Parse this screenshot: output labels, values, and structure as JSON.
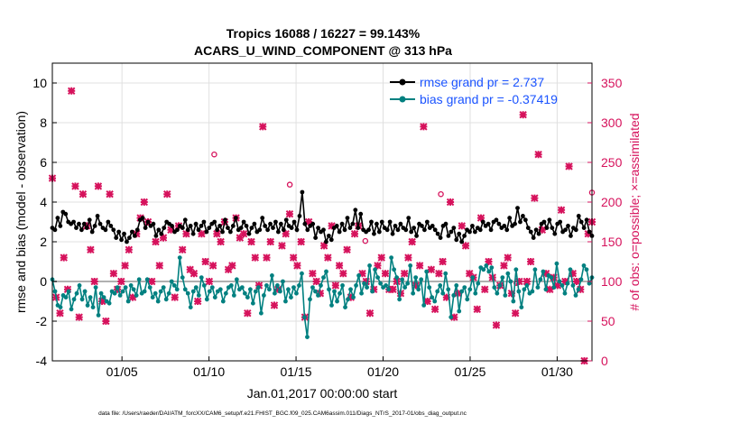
{
  "chart_data": {
    "type": "line",
    "title_line1": "Tropics 16088 / 16227 = 99.143%",
    "title_line2": "ACARS_U_WIND_COMPONENT @ 313 hPa",
    "xlabel": "Jan.01,2017 00:00:00 start",
    "ylabel_left": "rmse and bias (model - observation)",
    "ylabel_right": "# of obs: o=possible; ×=assimilated",
    "footer": "data file: /Users/raeder/DAI/ATM_forcXX/CAM6_setup/f.e21.FHIST_BGC.f09_025.CAM6assim.011/Diags_NTrS_2017-01/obs_diag_output.nc",
    "xlim": [
      1,
      32
    ],
    "ylim_left": [
      -4,
      11
    ],
    "ylim_right": [
      0,
      375
    ],
    "x_tick_values": [
      5,
      10,
      15,
      20,
      25,
      30
    ],
    "x_tick_labels": [
      "01/05",
      "01/10",
      "01/15",
      "01/20",
      "01/25",
      "01/30"
    ],
    "y_left_ticks": [
      -4,
      -2,
      0,
      2,
      4,
      6,
      8,
      10
    ],
    "y_right_ticks": [
      0,
      50,
      100,
      150,
      200,
      250,
      300,
      350
    ],
    "grid": true,
    "legend_position": "top-right",
    "series": [
      {
        "name": "rmse grand pr = 2.737",
        "color": "#000000",
        "values": [
          2.7,
          2.6,
          3.2,
          2.8,
          3.5,
          3.4,
          3.0,
          2.9,
          3.0,
          2.7,
          2.9,
          2.6,
          2.9,
          2.7,
          3.1,
          2.5,
          2.8,
          3.3,
          2.9,
          2.7,
          2.6,
          3.0,
          2.8,
          2.6,
          2.2,
          2.5,
          2.1,
          2.4,
          2.0,
          2.2,
          2.5,
          2.3,
          2.6,
          3.1,
          3.2,
          2.7,
          3.0,
          2.8,
          2.9,
          2.3,
          2.6,
          2.4,
          2.7,
          3.0,
          2.9,
          2.8,
          2.5,
          2.6,
          2.8,
          2.7,
          3.1,
          2.6,
          2.8,
          2.4,
          2.9,
          2.6,
          2.8,
          3.0,
          2.5,
          2.7,
          2.9,
          3.0,
          2.6,
          2.8,
          2.5,
          3.1,
          2.7,
          2.5,
          2.8,
          3.2,
          2.6,
          2.7,
          3.0,
          2.8,
          2.4,
          2.7,
          2.9,
          2.5,
          2.6,
          3.2,
          2.8,
          2.6,
          2.9,
          2.7,
          3.0,
          2.5,
          2.9,
          2.6,
          3.1,
          2.8,
          2.7,
          3.0,
          2.6,
          3.3,
          4.5,
          2.9,
          2.6,
          2.8,
          2.9,
          2.2,
          2.7,
          2.5,
          2.6,
          2.0,
          2.3,
          2.1,
          2.7,
          2.8,
          2.5,
          2.9,
          2.6,
          3.2,
          2.7,
          2.9,
          3.6,
          2.7,
          3.4,
          2.6,
          2.5,
          2.6,
          3.0,
          2.4,
          2.9,
          2.5,
          3.0,
          2.7,
          2.6,
          3.0,
          2.4,
          2.8,
          2.6,
          2.9,
          2.7,
          2.6,
          3.2,
          2.5,
          2.7,
          2.3,
          2.9,
          2.8,
          2.6,
          3.0,
          2.7,
          2.8,
          2.6,
          2.4,
          2.2,
          2.8,
          2.9,
          2.3,
          2.5,
          2.7,
          2.1,
          2.4,
          2.0,
          2.3,
          2.6,
          2.5,
          2.8,
          2.5,
          2.7,
          2.6,
          3.0,
          2.8,
          2.9,
          2.6,
          3.0,
          3.1,
          2.9,
          2.7,
          2.8,
          2.6,
          3.2,
          2.8,
          2.9,
          3.7,
          3.0,
          3.3,
          3.1,
          2.7,
          2.5,
          2.2,
          2.6,
          2.4,
          2.9,
          3.0,
          2.7,
          3.1,
          2.7,
          2.4,
          2.9,
          3.0,
          2.5,
          2.6,
          2.8,
          2.3,
          2.7,
          2.6,
          3.3,
          3.0,
          2.7,
          3.1,
          2.5,
          2.3
        ]
      },
      {
        "name": "bias grand pr = -0.37419",
        "color": "#008080",
        "values": [
          0.1,
          -0.5,
          -1.2,
          -1.3,
          -0.7,
          -0.8,
          -0.5,
          -1.4,
          -0.9,
          -0.6,
          -0.2,
          -0.9,
          -0.5,
          -1.2,
          -0.8,
          -1.3,
          -0.3,
          -1.7,
          -0.6,
          -0.8,
          -1.0,
          -1.1,
          -0.5,
          -0.6,
          -0.3,
          -0.7,
          -0.5,
          -0.3,
          -1.0,
          -0.2,
          -0.4,
          -0.7,
          0.1,
          -0.6,
          -0.5,
          0.1,
          -0.3,
          -0.8,
          -0.6,
          -1.0,
          -0.5,
          -0.3,
          -0.9,
          -0.6,
          0.0,
          -0.2,
          -0.4,
          1.2,
          0.2,
          -0.4,
          -0.6,
          -1.3,
          -0.5,
          -0.3,
          -0.7,
          0.2,
          -0.2,
          -0.9,
          -0.5,
          -0.3,
          -0.8,
          -0.5,
          -0.4,
          -1.0,
          -0.6,
          -0.3,
          -0.2,
          -0.7,
          0.1,
          -0.4,
          -0.3,
          -0.6,
          -0.8,
          -0.4,
          -1.1,
          -0.5,
          -0.3,
          -1.6,
          -0.7,
          -0.2,
          -0.4,
          0.3,
          -0.6,
          -0.2,
          -0.5,
          0.0,
          -1.0,
          -0.4,
          -0.8,
          -0.3,
          -0.6,
          -0.2,
          0.4,
          -1.8,
          -2.8,
          -0.9,
          -0.3,
          -0.5,
          -0.7,
          -0.2,
          0.2,
          0.5,
          -0.4,
          -1.2,
          -0.5,
          -1.0,
          -0.6,
          -0.2,
          -1.3,
          -0.9,
          -0.4,
          -0.8,
          -0.2,
          0.3,
          -0.6,
          -0.1,
          -0.3,
          0.8,
          -0.5,
          0.6,
          0.2,
          -0.1,
          -0.3,
          -0.2,
          -0.4,
          1.2,
          0.6,
          0.2,
          -0.9,
          0.1,
          -0.3,
          -0.1,
          0.8,
          -0.6,
          0.2,
          -0.4,
          0.1,
          -1.2,
          0.5,
          -0.3,
          -0.8,
          -1.0,
          -0.5,
          -0.2,
          -0.6,
          0.4,
          -0.4,
          -1.8,
          -0.7,
          -0.2,
          -1.5,
          -0.5,
          -0.3,
          -0.9,
          -0.4,
          0.2,
          -0.6,
          -0.1,
          0.7,
          0.6,
          0.8,
          0.5,
          0.7,
          -0.3,
          -0.6,
          -0.2,
          0.2,
          -0.7,
          0.4,
          0.0,
          -1.0,
          0.6,
          -0.5,
          -1.3,
          -0.4,
          -0.2,
          -0.6,
          -0.5,
          0.6,
          -0.3,
          0.1,
          0.5,
          -0.4,
          0.3,
          0.2,
          -0.3,
          0.9,
          0.0,
          -0.2,
          -0.6,
          -0.1,
          0.6,
          -0.2,
          -0.7,
          -0.4,
          0.1,
          0.8,
          0.6,
          -0.1,
          0.2
        ]
      }
    ],
    "obs_possible": [
      230,
      80,
      60,
      130,
      90,
      340,
      220,
      55,
      210,
      170,
      140,
      100,
      220,
      75,
      50,
      210,
      110,
      90,
      100,
      120,
      140,
      80,
      160,
      180,
      200,
      175,
      100,
      150,
      120,
      155,
      210,
      165,
      80,
      170,
      140,
      160,
      115,
      110,
      75,
      160,
      125,
      100,
      165,
      120,
      160,
      150,
      175,
      115,
      120,
      180,
      155,
      160,
      60,
      150,
      130,
      95,
      295,
      130,
      150,
      70,
      90,
      145,
      160,
      185,
      130,
      120,
      180,
      150,
      55,
      175,
      110,
      100,
      85,
      145,
      130,
      170,
      95,
      120,
      110,
      140,
      140,
      80,
      160,
      170,
      110,
      100,
      60,
      90,
      120,
      130,
      110,
      215,
      90,
      90,
      100,
      85,
      110,
      130,
      150,
      95,
      120,
      295,
      75,
      115,
      65,
      110,
      125,
      80,
      200,
      55,
      85,
      210,
      170,
      145,
      110,
      105,
      65,
      180,
      90,
      125,
      105,
      45,
      95,
      120,
      130,
      85,
      60,
      100,
      200,
      310,
      100,
      125,
      205,
      260,
      165,
      110,
      90,
      105,
      95,
      190,
      210,
      100,
      245,
      110,
      100,
      90,
      0,
      160,
      175
    ],
    "obs_assimilated": [
      230,
      80,
      60,
      130,
      90,
      340,
      220,
      55,
      210,
      170,
      140,
      100,
      220,
      75,
      50,
      210,
      110,
      90,
      100,
      120,
      140,
      80,
      160,
      180,
      200,
      175,
      100,
      150,
      120,
      155,
      210,
      165,
      80,
      170,
      140,
      160,
      115,
      110,
      75,
      160,
      125,
      100,
      120,
      160,
      150,
      175,
      115,
      120,
      180,
      155,
      160,
      60,
      150,
      130,
      95,
      295,
      130,
      150,
      70,
      90,
      145,
      160,
      185,
      130,
      120,
      150,
      55,
      175,
      110,
      100,
      85,
      145,
      130,
      170,
      95,
      120,
      110,
      140,
      80,
      160,
      170,
      110,
      100,
      60,
      90,
      120,
      130,
      110,
      90,
      90,
      100,
      85,
      110,
      130,
      150,
      95,
      120,
      295,
      75,
      115,
      65,
      110,
      125,
      80,
      200,
      55,
      85,
      170,
      145,
      110,
      105,
      65,
      180,
      90,
      125,
      105,
      45,
      95,
      120,
      130,
      85,
      60,
      100,
      310,
      100,
      125,
      205,
      260,
      165,
      110,
      90,
      105,
      95,
      190,
      100,
      245,
      110,
      100,
      90,
      0,
      160,
      175
    ],
    "obs_possible_only": [
      260,
      222,
      151,
      210,
      98,
      212
    ],
    "colors": {
      "rmse": "#000000",
      "bias": "#008080",
      "obs": "#d6125c",
      "legend_text": "#1a53ff",
      "zero_line": "#b0b0b0",
      "grid": "#e0e0e0"
    }
  }
}
